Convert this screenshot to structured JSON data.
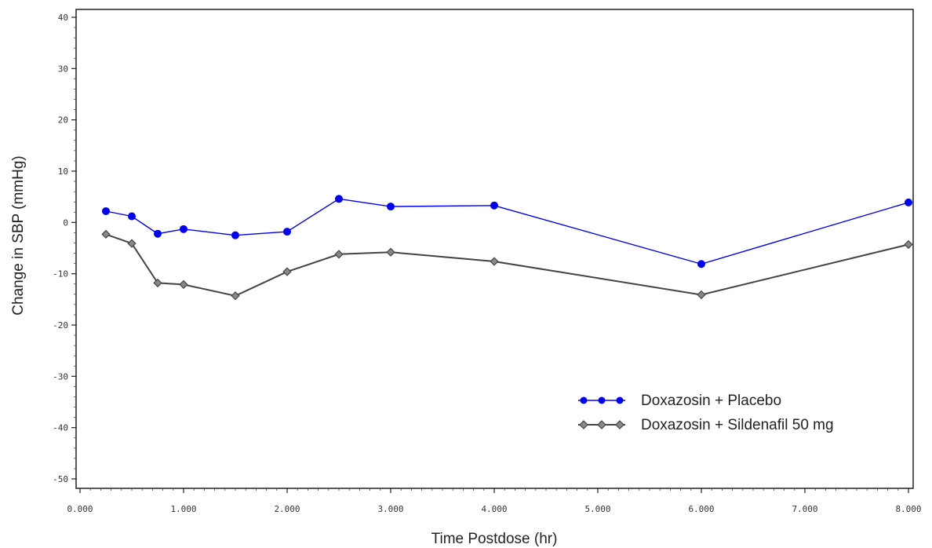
{
  "chart_data": {
    "type": "line",
    "xlabel": "Time Postdose (hr)",
    "ylabel": "Change in SBP  (mmHg)",
    "xlim": [
      0,
      8
    ],
    "ylim": [
      -50,
      40
    ],
    "x_ticks": [
      "0.000",
      "1.000",
      "2.000",
      "3.000",
      "4.000",
      "5.000",
      "6.000",
      "7.000",
      "8.000"
    ],
    "y_ticks": [
      "-50",
      "-40",
      "-30",
      "-20",
      "-10",
      "0",
      "10",
      "20",
      "30",
      "40"
    ],
    "grid": false,
    "legend_position": "bottom-right",
    "series": [
      {
        "name": "Doxazosin + Placebo",
        "color": "#0000ee",
        "marker": "circle",
        "x": [
          0.25,
          0.5,
          0.75,
          1,
          1.5,
          2,
          2.5,
          3,
          4,
          6,
          8
        ],
        "values": [
          2.2,
          1.2,
          -2.2,
          -1.3,
          -2.5,
          -1.8,
          4.6,
          3.1,
          3.3,
          -8.1,
          3.9
        ]
      },
      {
        "name": "Doxazosin + Sildenafil 50 mg",
        "color": "#444444",
        "marker": "diamond",
        "x": [
          0.25,
          0.5,
          0.75,
          1,
          1.5,
          2,
          2.5,
          3,
          4,
          6,
          8
        ],
        "values": [
          -2.3,
          -4.1,
          -11.8,
          -12.1,
          -14.3,
          -9.6,
          -6.2,
          -5.8,
          -7.6,
          -14.1,
          -4.3
        ]
      }
    ]
  }
}
